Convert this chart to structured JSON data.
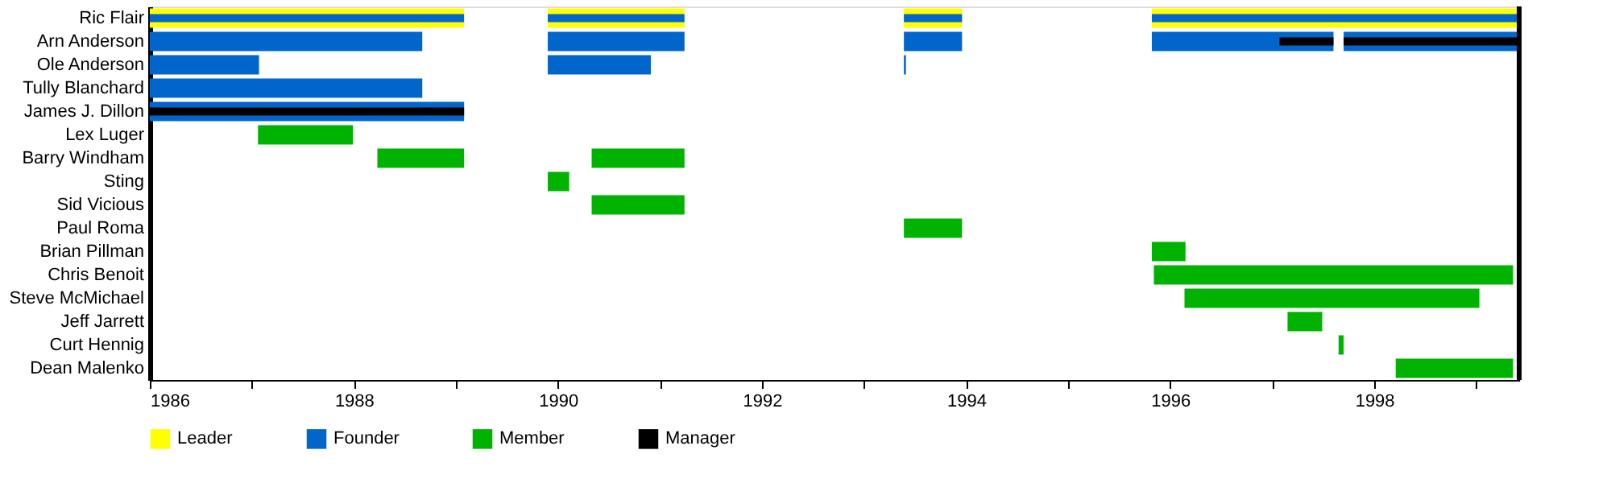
{
  "chart_data": {
    "type": "bar",
    "orientation": "horizontal",
    "legend": "bottom",
    "grid": false,
    "categories": [
      "Ric Flair",
      "Arn Anderson",
      "Ole Anderson",
      "Tully Blanchard",
      "James J. Dillon",
      "Lex Luger",
      "Barry Windham",
      "Sting",
      "Sid Vicious",
      "Paul Roma",
      "Brian Pillman",
      "Chris Benoit",
      "Steve McMichael",
      "Jeff Jarrett",
      "Curt Hennig",
      "Dean Malenko"
    ],
    "xlim": [
      1986,
      1999.42
    ],
    "xticks": [
      1986,
      {
        "value": 1987,
        "label": null
      },
      1988,
      {
        "value": 1989,
        "label": null
      },
      1990,
      {
        "value": 1991,
        "label": null
      },
      1992,
      {
        "value": 1993,
        "label": null
      },
      1994,
      {
        "value": 1995,
        "label": null
      },
      1996,
      {
        "value": 1997,
        "label": null
      },
      1998,
      {
        "value": 1999,
        "label": null
      }
    ],
    "ref_lines": [
      {
        "axis": "x",
        "value": 1999.42,
        "color": "#000000"
      }
    ],
    "series": [
      {
        "name": "Leader",
        "color": "#ffff00",
        "base": [
          1986,
          null,
          null,
          null,
          null,
          null,
          null,
          null,
          null,
          null,
          null,
          null,
          null,
          null,
          null,
          null
        ],
        "values": [
          3.08,
          null,
          null,
          null,
          null,
          null,
          null,
          null,
          null,
          null,
          null,
          null,
          null,
          null,
          null,
          null
        ]
      },
      {
        "color": "#ffff00",
        "base": [
          1989.9,
          null,
          null,
          null,
          null,
          null,
          null,
          null,
          null,
          null,
          null,
          null,
          null,
          null,
          null,
          null
        ],
        "values": [
          1.34,
          null,
          null,
          null,
          null,
          null,
          null,
          null,
          null,
          null,
          null,
          null,
          null,
          null,
          null,
          null
        ]
      },
      {
        "color": "#ffff00",
        "base": [
          1993.39,
          null,
          null,
          null,
          null,
          null,
          null,
          null,
          null,
          null,
          null,
          null,
          null,
          null,
          null,
          null
        ],
        "values": [
          0.57,
          null,
          null,
          null,
          null,
          null,
          null,
          null,
          null,
          null,
          null,
          null,
          null,
          null,
          null,
          null
        ]
      },
      {
        "color": "#ffff00",
        "base": [
          1995.82,
          null,
          null,
          null,
          null,
          null,
          null,
          null,
          null,
          null,
          null,
          null,
          null,
          null,
          null,
          null
        ],
        "values": [
          3.6,
          null,
          null,
          null,
          null,
          null,
          null,
          null,
          null,
          null,
          null,
          null,
          null,
          null,
          null,
          null
        ]
      },
      {
        "name": "Founder",
        "color": "#0066cc",
        "base": [
          1986,
          1986,
          1986,
          1986,
          1986,
          null,
          null,
          null,
          null,
          null,
          null,
          null,
          null,
          null,
          null,
          null
        ],
        "values": [
          3.08,
          2.67,
          1.07,
          2.67,
          3.08,
          null,
          null,
          null,
          null,
          null,
          null,
          null,
          null,
          null,
          null,
          null
        ]
      },
      {
        "color": "#0066cc",
        "base": [
          1989.9,
          1989.9,
          1989.9,
          null,
          null,
          null,
          null,
          null,
          null,
          null,
          null,
          null,
          null,
          null,
          null,
          null
        ],
        "values": [
          1.34,
          1.34,
          1.01,
          null,
          null,
          null,
          null,
          null,
          null,
          null,
          null,
          null,
          null,
          null,
          null,
          null
        ]
      },
      {
        "color": "#0066cc",
        "base": [
          1993.39,
          1993.39,
          1993.39,
          null,
          null,
          null,
          null,
          null,
          null,
          null,
          null,
          null,
          null,
          null,
          null,
          null
        ],
        "values": [
          0.57,
          0.57,
          0.02,
          null,
          null,
          null,
          null,
          null,
          null,
          null,
          null,
          null,
          null,
          null,
          null,
          null
        ]
      },
      {
        "color": "#0066cc",
        "base": [
          1995.82,
          1995.82,
          null,
          null,
          null,
          null,
          null,
          null,
          null,
          null,
          null,
          null,
          null,
          null,
          null,
          null
        ],
        "values": [
          3.6,
          1.78,
          null,
          null,
          null,
          null,
          null,
          null,
          null,
          null,
          null,
          null,
          null,
          null,
          null,
          null
        ]
      },
      {
        "color": "#0066cc",
        "base": [
          null,
          1997.7,
          null,
          null,
          null,
          null,
          null,
          null,
          null,
          null,
          null,
          null,
          null,
          null,
          null,
          null
        ],
        "values": [
          null,
          1.72,
          null,
          null,
          null,
          null,
          null,
          null,
          null,
          null,
          null,
          null,
          null,
          null,
          null,
          null
        ]
      },
      {
        "name": "Member",
        "color": "#00b300",
        "base": [
          null,
          null,
          null,
          null,
          null,
          1987.06,
          1988.23,
          1989.9,
          1990.33,
          1993.39,
          1995.82,
          1995.84,
          1996.14,
          1997.15,
          1997.65,
          1998.21
        ],
        "values": [
          null,
          null,
          null,
          null,
          null,
          0.93,
          0.85,
          0.21,
          0.91,
          0.57,
          0.33,
          3.52,
          2.89,
          0.34,
          0.05,
          1.15
        ]
      },
      {
        "color": "#00b300",
        "base": [
          null,
          null,
          null,
          null,
          null,
          null,
          1990.33,
          null,
          null,
          null,
          null,
          null,
          null,
          null,
          null,
          null
        ],
        "values": [
          null,
          null,
          null,
          null,
          null,
          null,
          0.91,
          null,
          null,
          null,
          null,
          null,
          null,
          null,
          null,
          null
        ]
      },
      {
        "name": "Manager",
        "color": "#000000",
        "base": [
          null,
          1997.07,
          null,
          null,
          1986,
          null,
          null,
          null,
          null,
          null,
          null,
          null,
          null,
          null,
          null,
          null
        ],
        "values": [
          null,
          0.53,
          null,
          null,
          3.08,
          null,
          null,
          null,
          null,
          null,
          null,
          null,
          null,
          null,
          null,
          null
        ]
      },
      {
        "color": "#000000",
        "base": [
          null,
          1997.7,
          null,
          null,
          null,
          null,
          null,
          null,
          null,
          null,
          null,
          null,
          null,
          null,
          null,
          null
        ],
        "values": [
          null,
          1.72,
          null,
          null,
          null,
          null,
          null,
          null,
          null,
          null,
          null,
          null,
          null,
          null,
          null,
          null
        ]
      }
    ]
  }
}
